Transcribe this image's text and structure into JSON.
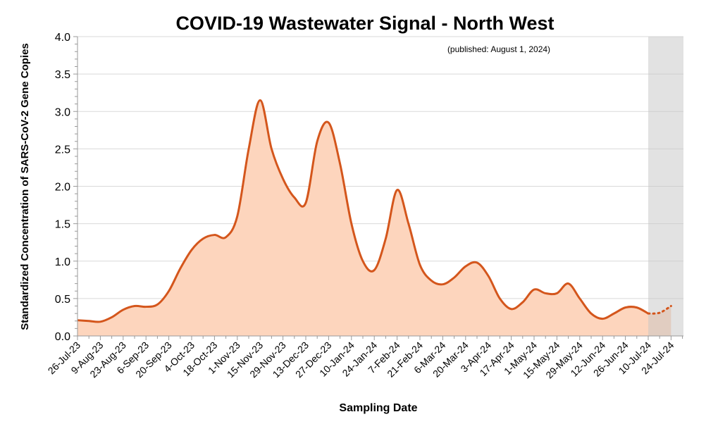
{
  "chart_data": {
    "type": "area",
    "title": "COVID-19 Wastewater Signal - North West",
    "subtitle": "(published: August 1, 2024)",
    "xlabel": "Sampling Date",
    "ylabel": "Standardized Concentration of SARS-CoV-2 Gene Copies",
    "ylim": [
      0,
      4.0
    ],
    "yticks": [
      "0.0",
      "0.5",
      "1.0",
      "1.5",
      "2.0",
      "2.5",
      "3.0",
      "3.5",
      "4.0"
    ],
    "grid": true,
    "xtick_labels": [
      "26-Jul-23",
      "9-Aug-23",
      "23-Aug-23",
      "6-Sep-23",
      "20-Sep-23",
      "4-Oct-23",
      "18-Oct-23",
      "1-Nov-23",
      "15-Nov-23",
      "29-Nov-23",
      "13-Dec-23",
      "27-Dec-23",
      "10-Jan-24",
      "24-Jan-24",
      "7-Feb-24",
      "21-Feb-24",
      "6-Mar-24",
      "20-Mar-24",
      "3-Apr-24",
      "17-Apr-24",
      "1-May-24",
      "15-May-24",
      "29-May-24",
      "12-Jun-24",
      "26-Jun-24",
      "10-Jul-24",
      "24-Jul-24"
    ],
    "x_interval": "weekly from 26-Jul-23",
    "values": [
      0.21,
      0.2,
      0.19,
      0.25,
      0.35,
      0.4,
      0.39,
      0.42,
      0.6,
      0.9,
      1.15,
      1.3,
      1.35,
      1.32,
      1.6,
      2.5,
      3.15,
      2.5,
      2.1,
      1.85,
      1.78,
      2.6,
      2.85,
      2.3,
      1.5,
      1.0,
      0.88,
      1.3,
      1.95,
      1.5,
      0.95,
      0.74,
      0.69,
      0.78,
      0.93,
      0.98,
      0.8,
      0.5,
      0.36,
      0.45,
      0.62,
      0.57,
      0.57,
      0.7,
      0.5,
      0.3,
      0.23,
      0.3,
      0.38,
      0.38,
      0.3,
      0.31,
      0.4
    ],
    "provisional_from": "10-Jul-24",
    "colors": {
      "line": "#d4561c",
      "fill": "#fdd5bd",
      "provisional_shade": "#e3e3e3",
      "grid": "#d9d9d9"
    }
  }
}
